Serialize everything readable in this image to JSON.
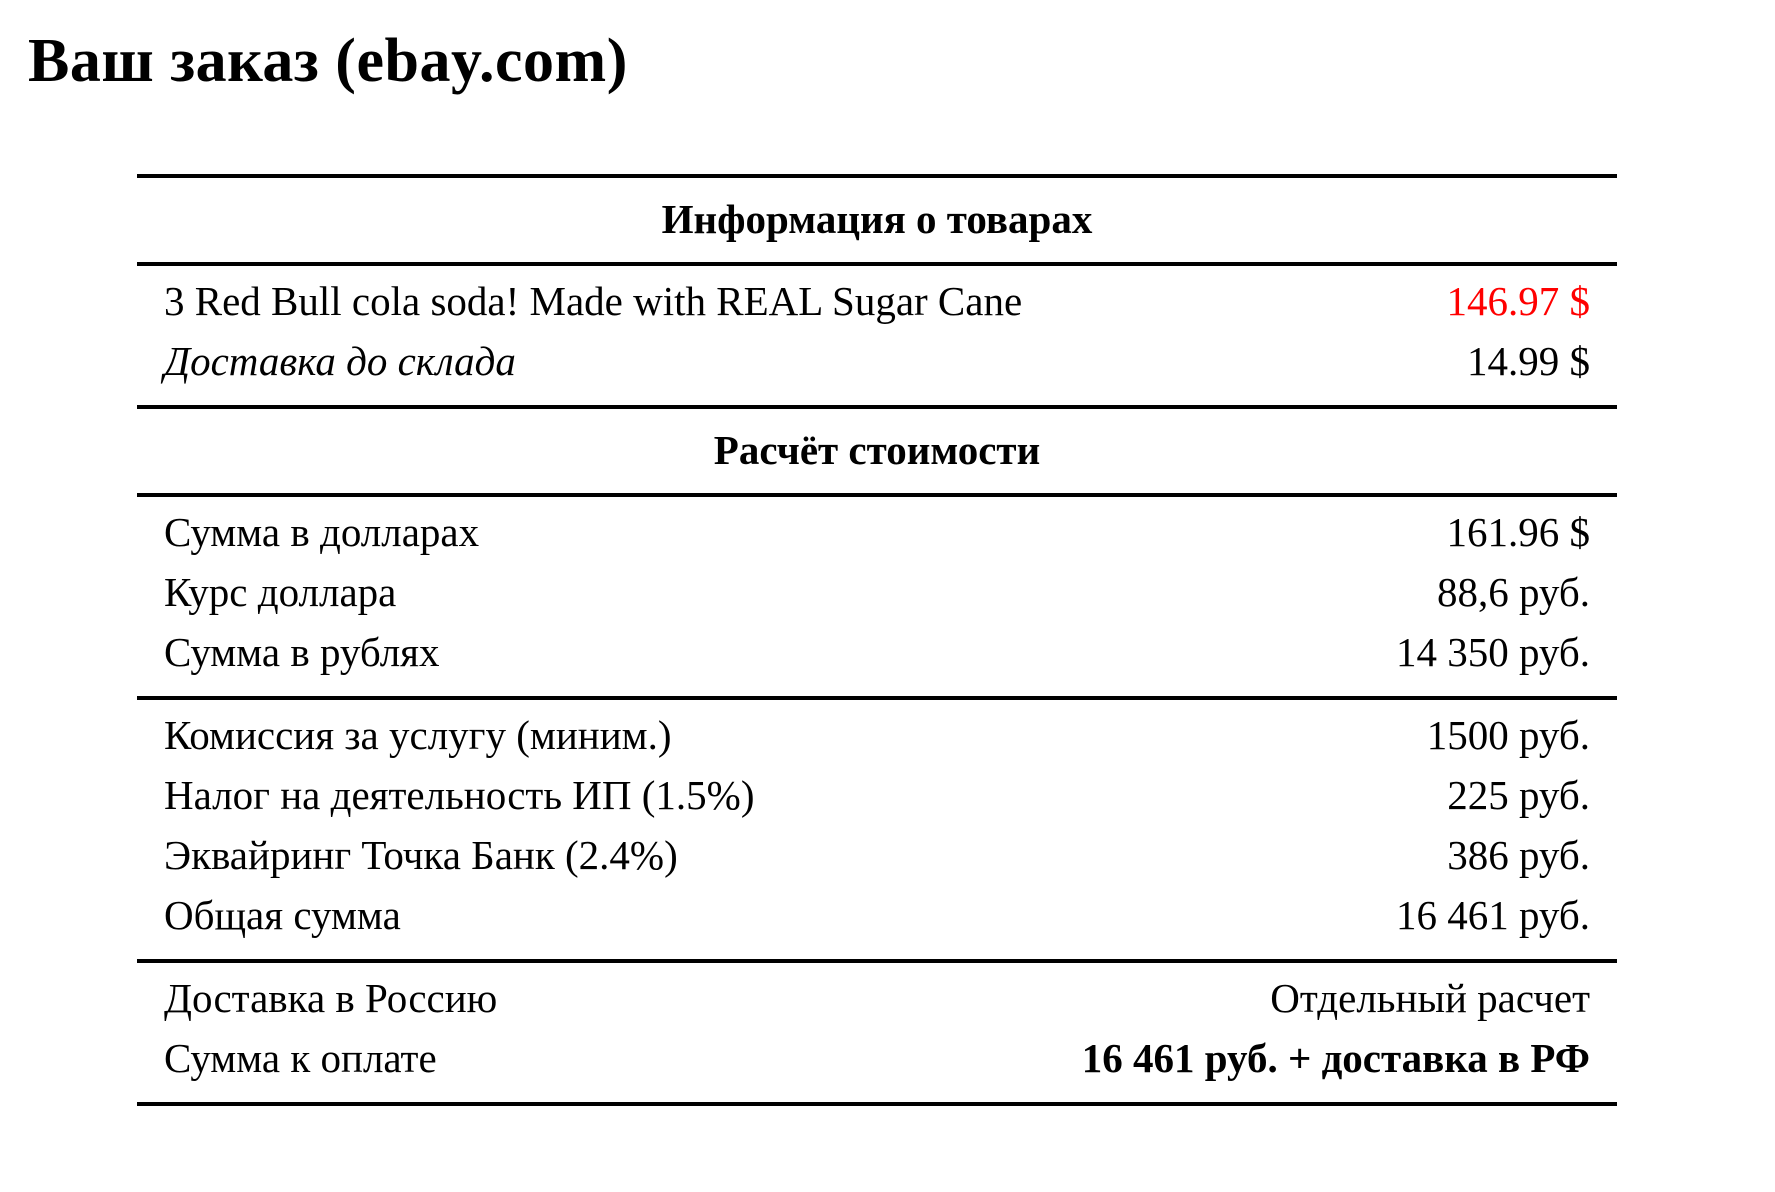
{
  "page": {
    "title": "Ваш заказ (ebay.com)"
  },
  "colors": {
    "background": "#ffffff",
    "text": "#000000",
    "rule": "#000000",
    "accent_red": "#ff0000"
  },
  "table": {
    "sections": [
      {
        "header": "Информация о товарах",
        "groups": [
          {
            "rows": [
              {
                "label": "3 Red Bull cola soda! Made with REAL Sugar Cane",
                "value": "146.97 $",
                "label_style": "normal",
                "value_style": "red"
              },
              {
                "label": "Доставка до склада",
                "value": "14.99 $",
                "label_style": "italic",
                "value_style": "normal"
              }
            ]
          }
        ]
      },
      {
        "header": "Расчёт стоимости",
        "groups": [
          {
            "rows": [
              {
                "label": "Сумма в долларах",
                "value": "161.96 $",
                "label_style": "normal",
                "value_style": "normal"
              },
              {
                "label": "Курс доллара",
                "value": "88,6 руб.",
                "label_style": "normal",
                "value_style": "normal"
              },
              {
                "label": "Сумма в рублях",
                "value": "14 350 руб.",
                "label_style": "normal",
                "value_style": "normal"
              }
            ]
          },
          {
            "rows": [
              {
                "label": "Комиссия за услугу (миним.)",
                "value": "1500 руб.",
                "label_style": "normal",
                "value_style": "normal"
              },
              {
                "label": "Налог на деятельность ИП (1.5%)",
                "value": "225 руб.",
                "label_style": "normal",
                "value_style": "normal"
              },
              {
                "label": "Эквайринг Точка Банк (2.4%)",
                "value": "386 руб.",
                "label_style": "normal",
                "value_style": "normal"
              },
              {
                "label": "Общая сумма",
                "value": "16 461 руб.",
                "label_style": "normal",
                "value_style": "normal"
              }
            ]
          },
          {
            "rows": [
              {
                "label": "Доставка в Россию",
                "value": "Отдельный расчет",
                "label_style": "normal",
                "value_style": "normal"
              },
              {
                "label": "Сумма к оплате",
                "value": "16 461 руб. + доставка в РФ",
                "label_style": "normal",
                "value_style": "bold"
              }
            ]
          }
        ]
      }
    ]
  }
}
